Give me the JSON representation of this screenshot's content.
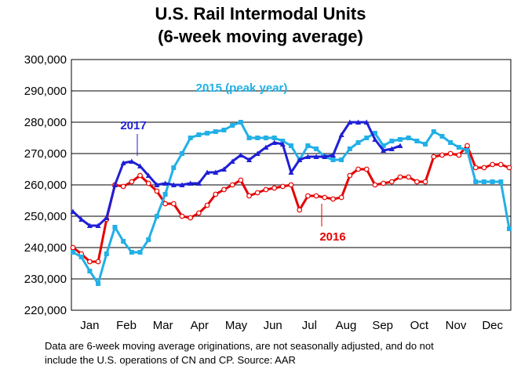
{
  "chart_data": {
    "type": "line",
    "title": [
      "U.S. Rail Intermodal Units",
      "(6-week moving average)"
    ],
    "xlabel": "",
    "ylabel": "",
    "ylim": [
      220000,
      300000
    ],
    "yticks": [
      220000,
      230000,
      240000,
      250000,
      260000,
      270000,
      280000,
      290000,
      300000
    ],
    "ytick_labels": [
      "220,000",
      "230,000",
      "240,000",
      "250,000",
      "260,000",
      "270,000",
      "280,000",
      "290,000",
      "300,000"
    ],
    "xlim": [
      1,
      53
    ],
    "month_labels": [
      "Jan",
      "Feb",
      "Mar",
      "Apr",
      "May",
      "Jun",
      "Jul",
      "Aug",
      "Sep",
      "Oct",
      "Nov",
      "Dec"
    ],
    "grid": true,
    "series": [
      {
        "name": "2016",
        "label": "2016",
        "color": "#e60000",
        "marker": "circle",
        "x": [
          1,
          2,
          3,
          4,
          5,
          6,
          7,
          8,
          9,
          10,
          11,
          12,
          13,
          14,
          15,
          16,
          17,
          18,
          19,
          20,
          21,
          22,
          23,
          24,
          25,
          26,
          27,
          28,
          29,
          30,
          31,
          32,
          33,
          34,
          35,
          36,
          37,
          38,
          39,
          40,
          41,
          42,
          43,
          44,
          45,
          46,
          47,
          48,
          49,
          50,
          51,
          52,
          53
        ],
        "values": [
          240000,
          238000,
          235500,
          235500,
          249000,
          260000,
          259500,
          261000,
          263000,
          260500,
          258000,
          254000,
          254000,
          250000,
          249500,
          251000,
          253500,
          257000,
          258500,
          260000,
          261500,
          256500,
          257500,
          258500,
          259000,
          259500,
          260000,
          252000,
          256500,
          256500,
          256000,
          255500,
          256000,
          263000,
          265000,
          265000,
          260000,
          260500,
          261000,
          262500,
          262500,
          261000,
          261000,
          269000,
          269500,
          270000,
          269500,
          272500,
          265500,
          265500,
          266500,
          266500,
          265500
        ]
      },
      {
        "name": "2015 (peak year)",
        "label": "2015 (peak year)",
        "color": "#22b0e6",
        "marker": "square",
        "x": [
          1,
          2,
          3,
          4,
          5,
          6,
          7,
          8,
          9,
          10,
          11,
          12,
          13,
          14,
          15,
          16,
          17,
          18,
          19,
          20,
          21,
          22,
          23,
          24,
          25,
          26,
          27,
          28,
          29,
          30,
          31,
          32,
          33,
          34,
          35,
          36,
          37,
          38,
          39,
          40,
          41,
          42,
          43,
          44,
          45,
          46,
          47,
          48,
          49,
          50,
          51,
          52,
          53
        ],
        "values": [
          238500,
          237000,
          232500,
          228500,
          238000,
          246500,
          242000,
          238500,
          238500,
          242500,
          250000,
          257000,
          265500,
          270000,
          275000,
          276000,
          276500,
          277000,
          277500,
          279000,
          280000,
          275000,
          275000,
          275000,
          275000,
          274000,
          272500,
          268000,
          272500,
          271500,
          269000,
          268000,
          268000,
          271500,
          273500,
          275000,
          276500,
          272500,
          274000,
          274500,
          275000,
          274000,
          273000,
          277000,
          275500,
          273500,
          272000,
          271000,
          261000,
          261000,
          261000,
          261000,
          246000
        ]
      },
      {
        "name": "2017",
        "label": "2017",
        "color": "#1f1fd6",
        "marker": "triangle",
        "x": [
          1,
          2,
          3,
          4,
          5,
          6,
          7,
          8,
          9,
          10,
          11,
          12,
          13,
          14,
          15,
          16,
          17,
          18,
          19,
          20,
          21,
          22,
          23,
          24,
          25,
          26,
          27,
          28,
          29,
          30,
          31,
          32,
          33,
          34,
          35,
          36,
          37,
          38,
          39,
          40
        ],
        "values": [
          251500,
          249000,
          247000,
          247000,
          249500,
          260000,
          267000,
          267500,
          266000,
          263000,
          260000,
          260500,
          260000,
          260000,
          260500,
          260500,
          264000,
          264000,
          265000,
          267500,
          269500,
          268000,
          270000,
          272000,
          273500,
          273000,
          264000,
          268000,
          269000,
          269000,
          269000,
          269500,
          276000,
          280000,
          280000,
          280000,
          274500,
          271000,
          271500,
          272500
        ]
      }
    ],
    "annotations": [
      "2015 (peak year)",
      "2017",
      "2016"
    ],
    "footnote": [
      "Data are 6-week moving average originations, are not seasonally adjusted, and do not",
      "include the U.S. operations of CN and CP.   Source: AAR"
    ]
  }
}
